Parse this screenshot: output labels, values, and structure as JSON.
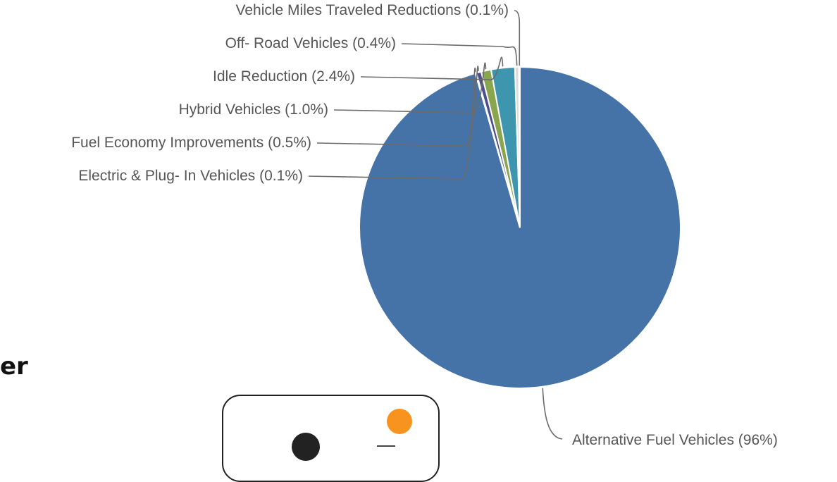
{
  "chart_data": {
    "type": "pie",
    "slices": [
      {
        "label": "Alternative Fuel Vehicles (96%)",
        "value": 96.0,
        "color": "#4572a7"
      },
      {
        "label": "Electric & Plug- In Vehicles (0.1%)",
        "value": 0.1,
        "color": "#8064a2"
      },
      {
        "label": "Fuel Economy Improvements (0.5%)",
        "value": 0.5,
        "color": "#4b4f8f"
      },
      {
        "label": "Hybrid Vehicles (1.0%)",
        "value": 1.0,
        "color": "#89a54e"
      },
      {
        "label": "Idle Reduction (2.4%)",
        "value": 2.4,
        "color": "#3d96ae"
      },
      {
        "label": "Off- Road Vehicles (0.4%)",
        "value": 0.4,
        "color": "#dbdbdb"
      },
      {
        "label": "Vehicle Miles Traveled Reductions (0.1%)",
        "value": 0.1,
        "color": "#db843d"
      }
    ]
  },
  "fragment_text": "er",
  "card": {
    "dot_color": "#f7931e"
  }
}
